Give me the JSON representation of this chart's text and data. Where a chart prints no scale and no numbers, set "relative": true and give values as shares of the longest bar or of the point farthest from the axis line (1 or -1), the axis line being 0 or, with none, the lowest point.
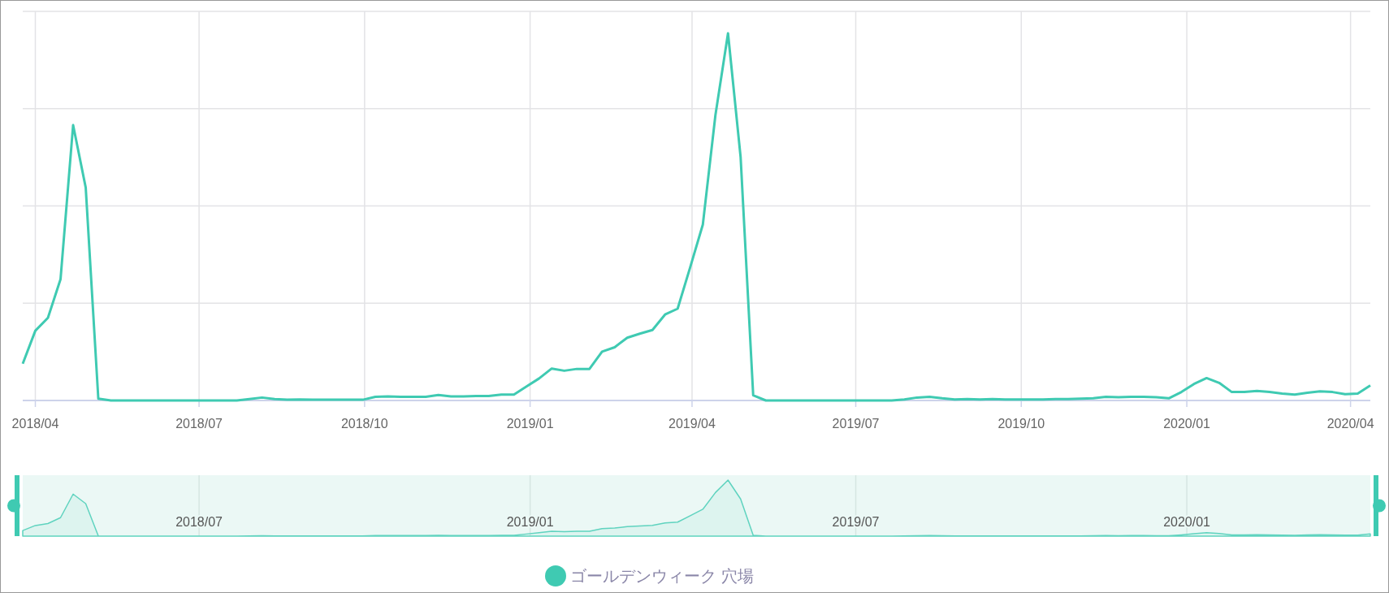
{
  "chart_data": [
    {
      "type": "line",
      "relative": true,
      "grid": true,
      "legend": "bottom",
      "marker": "none",
      "line_style": "solid",
      "x": [
        "2018-03-25",
        "2018-04-01",
        "2018-04-08",
        "2018-04-15",
        "2018-04-22",
        "2018-04-29",
        "2018-05-06",
        "2018-05-13",
        "2018-05-20",
        "2018-05-27",
        "2018-06-03",
        "2018-06-10",
        "2018-06-17",
        "2018-06-24",
        "2018-07-01",
        "2018-07-08",
        "2018-07-15",
        "2018-07-22",
        "2018-07-29",
        "2018-08-05",
        "2018-08-12",
        "2018-08-19",
        "2018-08-26",
        "2018-09-02",
        "2018-09-09",
        "2018-09-16",
        "2018-09-23",
        "2018-09-30",
        "2018-10-07",
        "2018-10-14",
        "2018-10-21",
        "2018-10-28",
        "2018-11-04",
        "2018-11-11",
        "2018-11-18",
        "2018-11-25",
        "2018-12-02",
        "2018-12-09",
        "2018-12-16",
        "2018-12-23",
        "2018-12-30",
        "2019-01-06",
        "2019-01-13",
        "2019-01-20",
        "2019-01-27",
        "2019-02-03",
        "2019-02-10",
        "2019-02-17",
        "2019-02-24",
        "2019-03-03",
        "2019-03-10",
        "2019-03-17",
        "2019-03-24",
        "2019-03-31",
        "2019-04-07",
        "2019-04-14",
        "2019-04-21",
        "2019-04-28",
        "2019-05-05",
        "2019-05-12",
        "2019-05-19",
        "2019-05-26",
        "2019-06-02",
        "2019-06-09",
        "2019-06-16",
        "2019-06-23",
        "2019-06-30",
        "2019-07-07",
        "2019-07-14",
        "2019-07-21",
        "2019-07-28",
        "2019-08-04",
        "2019-08-11",
        "2019-08-18",
        "2019-08-25",
        "2019-09-01",
        "2019-09-08",
        "2019-09-15",
        "2019-09-22",
        "2019-09-29",
        "2019-10-06",
        "2019-10-13",
        "2019-10-20",
        "2019-10-27",
        "2019-11-03",
        "2019-11-10",
        "2019-11-17",
        "2019-11-24",
        "2019-12-01",
        "2019-12-08",
        "2019-12-15",
        "2019-12-22",
        "2019-12-29",
        "2020-01-05",
        "2020-01-12",
        "2020-01-19",
        "2020-01-26",
        "2020-02-02",
        "2020-02-09",
        "2020-02-16",
        "2020-02-23",
        "2020-03-01",
        "2020-03-08",
        "2020-03-15",
        "2020-03-22",
        "2020-03-29",
        "2020-04-05",
        "2020-04-12"
      ],
      "xlim": [
        "2018-03-25",
        "2020-04-12"
      ],
      "xticks": [
        {
          "value": "2018-04-01",
          "label": "2018/04"
        },
        {
          "value": "2018-07-01",
          "label": "2018/07"
        },
        {
          "value": "2018-10-01",
          "label": "2018/10"
        },
        {
          "value": "2019-01-01",
          "label": "2019/01"
        },
        {
          "value": "2019-04-01",
          "label": "2019/04"
        },
        {
          "value": "2019-07-01",
          "label": "2019/07"
        },
        {
          "value": "2019-10-01",
          "label": "2019/10"
        },
        {
          "value": "2020-01-01",
          "label": "2020/01"
        },
        {
          "value": "2020-04-01",
          "label": "2020/04"
        }
      ],
      "series": [
        {
          "name": "ゴールデンウィーク 穴場",
          "color": "#3fcab2",
          "values": [
            0.1,
            0.19,
            0.225,
            0.33,
            0.75,
            0.58,
            0.005,
            0,
            0,
            0,
            0,
            0,
            0,
            0,
            0,
            0,
            0,
            0,
            0.004,
            0.008,
            0.004,
            0.002,
            0.003,
            0.002,
            0.002,
            0.002,
            0.002,
            0.002,
            0.01,
            0.011,
            0.01,
            0.01,
            0.01,
            0.015,
            0.011,
            0.011,
            0.012,
            0.012,
            0.016,
            0.016,
            0.038,
            0.06,
            0.087,
            0.081,
            0.086,
            0.086,
            0.133,
            0.145,
            0.171,
            0.182,
            0.192,
            0.234,
            0.25,
            0.363,
            0.479,
            0.777,
            1,
            0.663,
            0.014,
            0,
            0,
            0,
            0,
            0,
            0,
            0,
            0,
            0,
            0,
            0,
            0.003,
            0.008,
            0.01,
            0.006,
            0.003,
            0.004,
            0.003,
            0.004,
            0.003,
            0.003,
            0.003,
            0.003,
            0.004,
            0.004,
            0.005,
            0.006,
            0.01,
            0.009,
            0.01,
            0.01,
            0.009,
            0.006,
            0.023,
            0.045,
            0.061,
            0.048,
            0.023,
            0.023,
            0.026,
            0.023,
            0.019,
            0.016,
            0.021,
            0.025,
            0.023,
            0.017,
            0.019,
            0.041
          ]
        }
      ]
    },
    {
      "type": "area",
      "relative": true,
      "grid": "x",
      "x": [
        "2018-03-25",
        "2018-04-01",
        "2018-04-08",
        "2018-04-15",
        "2018-04-22",
        "2018-04-29",
        "2018-05-06",
        "2018-05-13",
        "2018-05-20",
        "2018-05-27",
        "2018-06-03",
        "2018-06-10",
        "2018-06-17",
        "2018-06-24",
        "2018-07-01",
        "2018-07-08",
        "2018-07-15",
        "2018-07-22",
        "2018-07-29",
        "2018-08-05",
        "2018-08-12",
        "2018-08-19",
        "2018-08-26",
        "2018-09-02",
        "2018-09-09",
        "2018-09-16",
        "2018-09-23",
        "2018-09-30",
        "2018-10-07",
        "2018-10-14",
        "2018-10-21",
        "2018-10-28",
        "2018-11-04",
        "2018-11-11",
        "2018-11-18",
        "2018-11-25",
        "2018-12-02",
        "2018-12-09",
        "2018-12-16",
        "2018-12-23",
        "2018-12-30",
        "2019-01-06",
        "2019-01-13",
        "2019-01-20",
        "2019-01-27",
        "2019-02-03",
        "2019-02-10",
        "2019-02-17",
        "2019-02-24",
        "2019-03-03",
        "2019-03-10",
        "2019-03-17",
        "2019-03-24",
        "2019-03-31",
        "2019-04-07",
        "2019-04-14",
        "2019-04-21",
        "2019-04-28",
        "2019-05-05",
        "2019-05-12",
        "2019-05-19",
        "2019-05-26",
        "2019-06-02",
        "2019-06-09",
        "2019-06-16",
        "2019-06-23",
        "2019-06-30",
        "2019-07-07",
        "2019-07-14",
        "2019-07-21",
        "2019-07-28",
        "2019-08-04",
        "2019-08-11",
        "2019-08-18",
        "2019-08-25",
        "2019-09-01",
        "2019-09-08",
        "2019-09-15",
        "2019-09-22",
        "2019-09-29",
        "2019-10-06",
        "2019-10-13",
        "2019-10-20",
        "2019-10-27",
        "2019-11-03",
        "2019-11-10",
        "2019-11-17",
        "2019-11-24",
        "2019-12-01",
        "2019-12-08",
        "2019-12-15",
        "2019-12-22",
        "2019-12-29",
        "2020-01-05",
        "2020-01-12",
        "2020-01-19",
        "2020-01-26",
        "2020-02-02",
        "2020-02-09",
        "2020-02-16",
        "2020-02-23",
        "2020-03-01",
        "2020-03-08",
        "2020-03-15",
        "2020-03-22",
        "2020-03-29",
        "2020-04-05",
        "2020-04-12"
      ],
      "xlim": [
        "2018-03-25",
        "2020-04-12"
      ],
      "xticks": [
        {
          "value": "2018-07-01",
          "label": "2018/07"
        },
        {
          "value": "2019-01-01",
          "label": "2019/01"
        },
        {
          "value": "2019-07-01",
          "label": "2019/07"
        },
        {
          "value": "2020-01-01",
          "label": "2020/01"
        }
      ],
      "series": [
        {
          "color": "#5fd3bf",
          "values": [
            0.1,
            0.19,
            0.225,
            0.33,
            0.75,
            0.58,
            0.005,
            0,
            0,
            0,
            0,
            0,
            0,
            0,
            0,
            0,
            0,
            0,
            0.004,
            0.008,
            0.004,
            0.002,
            0.003,
            0.002,
            0.002,
            0.002,
            0.002,
            0.002,
            0.01,
            0.011,
            0.01,
            0.01,
            0.01,
            0.015,
            0.011,
            0.011,
            0.012,
            0.012,
            0.016,
            0.016,
            0.038,
            0.06,
            0.087,
            0.081,
            0.086,
            0.086,
            0.133,
            0.145,
            0.171,
            0.182,
            0.192,
            0.234,
            0.25,
            0.363,
            0.479,
            0.777,
            1,
            0.663,
            0.014,
            0,
            0,
            0,
            0,
            0,
            0,
            0,
            0,
            0,
            0,
            0,
            0.003,
            0.008,
            0.01,
            0.006,
            0.003,
            0.004,
            0.003,
            0.004,
            0.003,
            0.003,
            0.003,
            0.003,
            0.004,
            0.004,
            0.005,
            0.006,
            0.01,
            0.009,
            0.01,
            0.01,
            0.009,
            0.006,
            0.023,
            0.045,
            0.061,
            0.048,
            0.023,
            0.023,
            0.026,
            0.023,
            0.019,
            0.016,
            0.021,
            0.025,
            0.023,
            0.017,
            0.019,
            0.041
          ]
        }
      ]
    }
  ]
}
